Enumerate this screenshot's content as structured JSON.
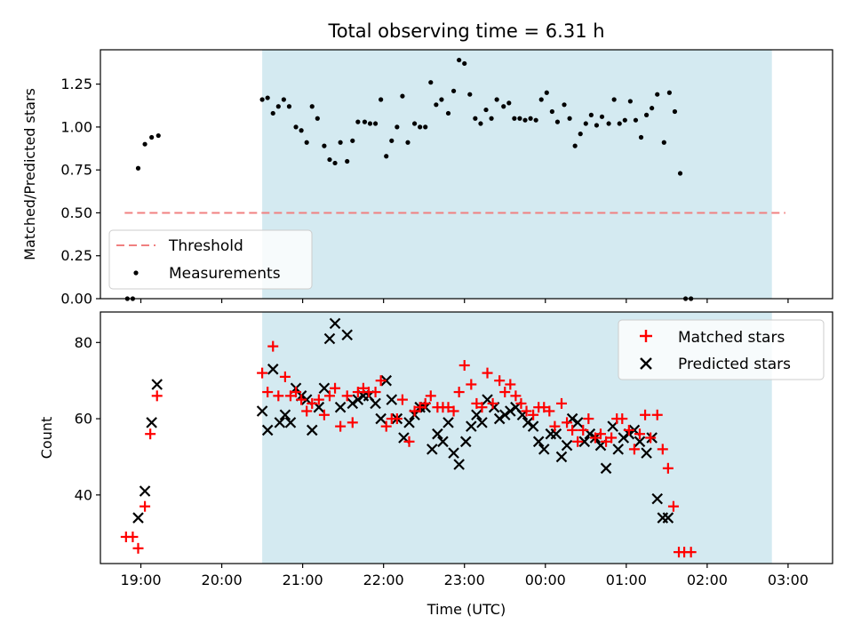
{
  "chart_data": [
    {
      "type": "scatter",
      "title": "Total observing time = 6.31 h",
      "xlabel": "",
      "ylabel": "Matched/Predicted stars",
      "ylim": [
        0,
        1.45
      ],
      "yticks": [
        "0.00",
        "0.25",
        "0.50",
        "0.75",
        "1.00",
        "1.25"
      ],
      "ytick_values": [
        0,
        0.25,
        0.5,
        0.75,
        1.0,
        1.25
      ],
      "shaded_region": {
        "start": "20:30",
        "end": "02:48",
        "color": "#d4eaf1"
      },
      "threshold": {
        "name": "Threshold",
        "value": 0.5,
        "x_start": "18:48",
        "x_end": "02:58",
        "color": "#f08080"
      },
      "legend_position": "lower-left",
      "series": [
        {
          "name": "Measurements",
          "color": "#000000",
          "points": [
            [
              "18:50",
              0.0
            ],
            [
              "18:54",
              0.0
            ],
            [
              "18:58",
              0.76
            ],
            [
              "19:03",
              0.9
            ],
            [
              "19:08",
              0.94
            ],
            [
              "19:13",
              0.95
            ],
            [
              "20:30",
              1.16
            ],
            [
              "20:34",
              1.17
            ],
            [
              "20:38",
              1.08
            ],
            [
              "20:42",
              1.12
            ],
            [
              "20:46",
              1.16
            ],
            [
              "20:50",
              1.12
            ],
            [
              "20:55",
              1.0
            ],
            [
              "20:59",
              0.98
            ],
            [
              "21:03",
              0.91
            ],
            [
              "21:07",
              1.12
            ],
            [
              "21:11",
              1.05
            ],
            [
              "21:16",
              0.89
            ],
            [
              "21:20",
              0.81
            ],
            [
              "21:24",
              0.79
            ],
            [
              "21:28",
              0.91
            ],
            [
              "21:33",
              0.8
            ],
            [
              "21:37",
              0.92
            ],
            [
              "21:41",
              1.03
            ],
            [
              "21:46",
              1.03
            ],
            [
              "21:50",
              1.02
            ],
            [
              "21:54",
              1.02
            ],
            [
              "21:58",
              1.16
            ],
            [
              "22:02",
              0.83
            ],
            [
              "22:06",
              0.92
            ],
            [
              "22:10",
              1.0
            ],
            [
              "22:14",
              1.18
            ],
            [
              "22:18",
              0.91
            ],
            [
              "22:23",
              1.02
            ],
            [
              "22:27",
              1.0
            ],
            [
              "22:31",
              1.0
            ],
            [
              "22:35",
              1.26
            ],
            [
              "22:39",
              1.13
            ],
            [
              "22:43",
              1.16
            ],
            [
              "22:48",
              1.08
            ],
            [
              "22:52",
              1.21
            ],
            [
              "22:56",
              1.39
            ],
            [
              "23:00",
              1.37
            ],
            [
              "23:04",
              1.19
            ],
            [
              "23:08",
              1.05
            ],
            [
              "23:12",
              1.02
            ],
            [
              "23:16",
              1.1
            ],
            [
              "23:20",
              1.05
            ],
            [
              "23:24",
              1.16
            ],
            [
              "23:29",
              1.12
            ],
            [
              "23:33",
              1.14
            ],
            [
              "23:37",
              1.05
            ],
            [
              "23:41",
              1.05
            ],
            [
              "23:45",
              1.04
            ],
            [
              "23:49",
              1.05
            ],
            [
              "23:53",
              1.04
            ],
            [
              "23:57",
              1.16
            ],
            [
              "00:01",
              1.2
            ],
            [
              "00:05",
              1.09
            ],
            [
              "00:09",
              1.03
            ],
            [
              "00:14",
              1.13
            ],
            [
              "00:18",
              1.05
            ],
            [
              "00:22",
              0.89
            ],
            [
              "00:26",
              0.96
            ],
            [
              "00:30",
              1.02
            ],
            [
              "00:34",
              1.07
            ],
            [
              "00:38",
              1.01
            ],
            [
              "00:42",
              1.06
            ],
            [
              "00:47",
              1.02
            ],
            [
              "00:51",
              1.16
            ],
            [
              "00:55",
              1.02
            ],
            [
              "00:59",
              1.04
            ],
            [
              "01:03",
              1.15
            ],
            [
              "01:07",
              1.04
            ],
            [
              "01:11",
              0.94
            ],
            [
              "01:15",
              1.07
            ],
            [
              "01:19",
              1.11
            ],
            [
              "01:23",
              1.19
            ],
            [
              "01:28",
              0.91
            ],
            [
              "01:32",
              1.2
            ],
            [
              "01:36",
              1.09
            ],
            [
              "01:40",
              0.73
            ],
            [
              "01:44",
              0.0
            ],
            [
              "01:48",
              0.0
            ]
          ]
        }
      ]
    },
    {
      "type": "scatter",
      "title": "",
      "xlabel": "Time (UTC)",
      "ylabel": "Count",
      "ylim": [
        22,
        88
      ],
      "yticks": [
        "40",
        "60",
        "80"
      ],
      "ytick_values": [
        40,
        60,
        80
      ],
      "xticks": [
        "19:00",
        "20:00",
        "21:00",
        "22:00",
        "23:00",
        "00:00",
        "01:00",
        "02:00",
        "03:00"
      ],
      "shaded_region": {
        "start": "20:30",
        "end": "02:48",
        "color": "#d4eaf1"
      },
      "legend_position": "upper-right",
      "series": [
        {
          "name": "Matched stars",
          "color": "#ff0000",
          "marker": "plus",
          "points": [
            [
              "18:49",
              29
            ],
            [
              "18:54",
              29
            ],
            [
              "18:58",
              26
            ],
            [
              "19:03",
              37
            ],
            [
              "19:07",
              56
            ],
            [
              "19:12",
              66
            ],
            [
              "20:30",
              72
            ],
            [
              "20:34",
              67
            ],
            [
              "20:38",
              79
            ],
            [
              "20:42",
              66
            ],
            [
              "20:47",
              71
            ],
            [
              "20:51",
              66
            ],
            [
              "20:55",
              67
            ],
            [
              "20:59",
              65
            ],
            [
              "21:03",
              62
            ],
            [
              "21:07",
              64
            ],
            [
              "21:12",
              65
            ],
            [
              "21:16",
              61
            ],
            [
              "21:20",
              66
            ],
            [
              "21:24",
              68
            ],
            [
              "21:28",
              58
            ],
            [
              "21:33",
              66
            ],
            [
              "21:37",
              59
            ],
            [
              "21:41",
              67
            ],
            [
              "21:45",
              68
            ],
            [
              "21:49",
              67
            ],
            [
              "21:54",
              67
            ],
            [
              "21:58",
              70
            ],
            [
              "22:02",
              58
            ],
            [
              "22:06",
              60
            ],
            [
              "22:10",
              60
            ],
            [
              "22:14",
              65
            ],
            [
              "22:19",
              54
            ],
            [
              "22:23",
              62
            ],
            [
              "22:27",
              63
            ],
            [
              "22:31",
              64
            ],
            [
              "22:35",
              66
            ],
            [
              "22:40",
              63
            ],
            [
              "22:44",
              63
            ],
            [
              "22:48",
              63
            ],
            [
              "22:52",
              62
            ],
            [
              "22:56",
              67
            ],
            [
              "23:00",
              74
            ],
            [
              "23:05",
              69
            ],
            [
              "23:09",
              64
            ],
            [
              "23:13",
              63
            ],
            [
              "23:17",
              72
            ],
            [
              "23:21",
              64
            ],
            [
              "23:26",
              70
            ],
            [
              "23:30",
              67
            ],
            [
              "23:34",
              69
            ],
            [
              "23:38",
              66
            ],
            [
              "23:42",
              64
            ],
            [
              "23:46",
              62
            ],
            [
              "23:51",
              61
            ],
            [
              "23:55",
              63
            ],
            [
              "23:59",
              63
            ],
            [
              "00:03",
              62
            ],
            [
              "00:07",
              58
            ],
            [
              "00:12",
              64
            ],
            [
              "00:16",
              59
            ],
            [
              "00:20",
              57
            ],
            [
              "00:24",
              54
            ],
            [
              "00:28",
              57
            ],
            [
              "00:32",
              60
            ],
            [
              "00:37",
              55
            ],
            [
              "00:41",
              56
            ],
            [
              "00:45",
              54
            ],
            [
              "00:49",
              55
            ],
            [
              "00:53",
              60
            ],
            [
              "00:57",
              60
            ],
            [
              "01:02",
              57
            ],
            [
              "01:06",
              52
            ],
            [
              "01:10",
              56
            ],
            [
              "01:14",
              61
            ],
            [
              "01:18",
              55
            ],
            [
              "01:23",
              61
            ],
            [
              "01:27",
              52
            ],
            [
              "01:31",
              47
            ],
            [
              "01:35",
              37
            ],
            [
              "01:39",
              25
            ],
            [
              "01:43",
              25
            ],
            [
              "01:48",
              25
            ]
          ]
        },
        {
          "name": "Predicted stars",
          "color": "#000000",
          "marker": "x",
          "points": [
            [
              "18:58",
              34
            ],
            [
              "19:03",
              41
            ],
            [
              "19:08",
              59
            ],
            [
              "19:12",
              69
            ],
            [
              "20:30",
              62
            ],
            [
              "20:34",
              57
            ],
            [
              "20:38",
              73
            ],
            [
              "20:43",
              59
            ],
            [
              "20:47",
              61
            ],
            [
              "20:51",
              59
            ],
            [
              "20:55",
              68
            ],
            [
              "20:59",
              66
            ],
            [
              "21:03",
              65
            ],
            [
              "21:07",
              57
            ],
            [
              "21:12",
              63
            ],
            [
              "21:16",
              68
            ],
            [
              "21:20",
              81
            ],
            [
              "21:24",
              85
            ],
            [
              "21:28",
              63
            ],
            [
              "21:33",
              82
            ],
            [
              "21:37",
              64
            ],
            [
              "21:41",
              65
            ],
            [
              "21:45",
              66
            ],
            [
              "21:49",
              66
            ],
            [
              "21:54",
              64
            ],
            [
              "21:58",
              60
            ],
            [
              "22:02",
              70
            ],
            [
              "22:06",
              65
            ],
            [
              "22:10",
              60
            ],
            [
              "22:15",
              55
            ],
            [
              "22:19",
              59
            ],
            [
              "22:23",
              61
            ],
            [
              "22:27",
              63
            ],
            [
              "22:31",
              63
            ],
            [
              "22:36",
              52
            ],
            [
              "22:40",
              56
            ],
            [
              "22:44",
              54
            ],
            [
              "22:48",
              59
            ],
            [
              "22:52",
              51
            ],
            [
              "22:56",
              48
            ],
            [
              "23:01",
              54
            ],
            [
              "23:05",
              58
            ],
            [
              "23:09",
              61
            ],
            [
              "23:13",
              59
            ],
            [
              "23:17",
              65
            ],
            [
              "23:22",
              63
            ],
            [
              "23:26",
              60
            ],
            [
              "23:30",
              61
            ],
            [
              "23:34",
              62
            ],
            [
              "23:38",
              63
            ],
            [
              "23:43",
              61
            ],
            [
              "23:47",
              59
            ],
            [
              "23:51",
              58
            ],
            [
              "23:55",
              54
            ],
            [
              "23:59",
              52
            ],
            [
              "00:04",
              56
            ],
            [
              "00:08",
              56
            ],
            [
              "00:12",
              50
            ],
            [
              "00:16",
              53
            ],
            [
              "00:20",
              60
            ],
            [
              "00:24",
              59
            ],
            [
              "00:29",
              54
            ],
            [
              "00:33",
              56
            ],
            [
              "00:37",
              55
            ],
            [
              "00:41",
              53
            ],
            [
              "00:45",
              47
            ],
            [
              "00:50",
              58
            ],
            [
              "00:54",
              52
            ],
            [
              "00:58",
              55
            ],
            [
              "01:02",
              56
            ],
            [
              "01:06",
              57
            ],
            [
              "01:10",
              54
            ],
            [
              "01:15",
              51
            ],
            [
              "01:19",
              55
            ],
            [
              "01:23",
              39
            ],
            [
              "01:27",
              34
            ],
            [
              "01:31",
              34
            ]
          ]
        }
      ]
    }
  ]
}
